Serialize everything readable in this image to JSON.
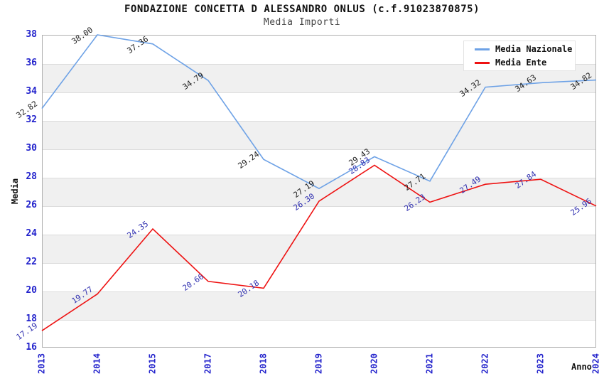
{
  "header": {
    "title": "FONDAZIONE CONCETTA D ALESSANDRO ONLUS (c.f.91023870875)",
    "subtitle": "Media Importi"
  },
  "axes": {
    "y_label": "Media",
    "x_label": "Anno",
    "tick_color": "#2323cc"
  },
  "legend": {
    "position": "top-right",
    "items": [
      {
        "label": "Media Nazionale",
        "color": "#6ea2e6"
      },
      {
        "label": "Media Ente",
        "color": "#ee1212"
      }
    ]
  },
  "chart_data": {
    "type": "line",
    "title": "Media Importi",
    "xlabel": "Anno",
    "ylabel": "Media",
    "categories": [
      "2013",
      "2014",
      "2015",
      "2017",
      "2018",
      "2019",
      "2020",
      "2021",
      "2022",
      "2023",
      "2024"
    ],
    "series": [
      {
        "name": "Media Nazionale",
        "color": "#6ea2e6",
        "label_color": "#1c1c1c",
        "values": [
          32.82,
          38.0,
          37.36,
          34.79,
          29.24,
          27.19,
          29.43,
          27.71,
          34.32,
          34.63,
          34.82
        ]
      },
      {
        "name": "Media Ente",
        "color": "#ee1212",
        "label_color": "#3030b0",
        "values": [
          17.19,
          19.77,
          24.35,
          20.66,
          20.18,
          26.3,
          28.83,
          26.23,
          27.49,
          27.84,
          25.96
        ]
      }
    ],
    "ylim": [
      16,
      38
    ],
    "ytick_step": 2,
    "grid": "horizontal",
    "band_colors": [
      "#ffffff",
      "#f0f0f0"
    ]
  }
}
